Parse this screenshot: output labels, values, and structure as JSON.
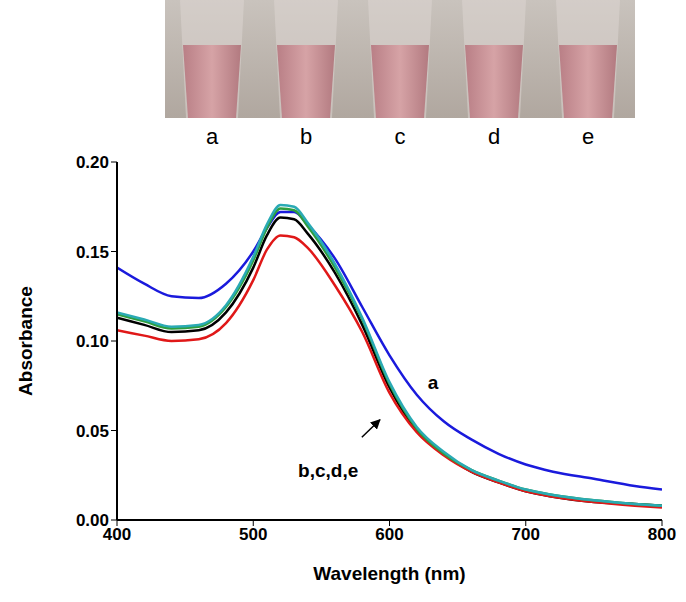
{
  "chart_data": {
    "type": "line",
    "x_label": "Wavelength (nm)",
    "y_label": "Absorbance",
    "x": [
      400,
      420,
      440,
      460,
      480,
      500,
      510,
      520,
      530,
      540,
      560,
      580,
      600,
      620,
      640,
      660,
      680,
      700,
      720,
      750,
      780,
      800
    ],
    "series": [
      {
        "name": "a",
        "color": "#1a1adc",
        "values": [
          0.141,
          0.132,
          0.125,
          0.124,
          0.132,
          0.15,
          0.163,
          0.172,
          0.172,
          0.165,
          0.146,
          0.119,
          0.092,
          0.07,
          0.055,
          0.045,
          0.037,
          0.031,
          0.027,
          0.023,
          0.019,
          0.017
        ]
      },
      {
        "name": "b",
        "color": "#000000",
        "values": [
          0.113,
          0.109,
          0.105,
          0.106,
          0.116,
          0.141,
          0.159,
          0.169,
          0.168,
          0.16,
          0.138,
          0.109,
          0.074,
          0.05,
          0.037,
          0.027,
          0.021,
          0.016,
          0.013,
          0.01,
          0.009,
          0.008
        ]
      },
      {
        "name": "c",
        "color": "#e01818",
        "values": [
          0.106,
          0.103,
          0.1,
          0.101,
          0.11,
          0.134,
          0.151,
          0.159,
          0.158,
          0.152,
          0.131,
          0.105,
          0.071,
          0.049,
          0.036,
          0.027,
          0.021,
          0.016,
          0.013,
          0.01,
          0.008,
          0.007
        ]
      },
      {
        "name": "d",
        "color": "#2e9e3e",
        "values": [
          0.115,
          0.111,
          0.107,
          0.108,
          0.119,
          0.145,
          0.163,
          0.174,
          0.173,
          0.164,
          0.141,
          0.112,
          0.076,
          0.051,
          0.037,
          0.028,
          0.022,
          0.017,
          0.014,
          0.011,
          0.009,
          0.008
        ]
      },
      {
        "name": "e",
        "color": "#2aaab4",
        "values": [
          0.116,
          0.112,
          0.108,
          0.109,
          0.12,
          0.147,
          0.165,
          0.176,
          0.175,
          0.166,
          0.143,
          0.113,
          0.077,
          0.052,
          0.038,
          0.028,
          0.022,
          0.017,
          0.014,
          0.011,
          0.009,
          0.008
        ]
      }
    ],
    "xlim": [
      400,
      800
    ],
    "xticks": [
      400,
      500,
      600,
      700,
      800
    ],
    "ylim": [
      0,
      0.2
    ],
    "yticks": [
      {
        "value": 0,
        "label": "0.00"
      },
      {
        "value": 0.05,
        "label": "0.05"
      },
      {
        "value": 0.1,
        "label": "0.10"
      },
      {
        "value": 0.15,
        "label": "0.15"
      },
      {
        "value": 0.2,
        "label": "0.20"
      }
    ],
    "grid": false,
    "annotations": [
      {
        "text": "a",
        "x": 632,
        "y": 0.077
      },
      {
        "text": "b,c,d,e",
        "x": 555,
        "y": 0.028,
        "arrow_to": [
          593,
          0.056
        ]
      }
    ]
  }
}
